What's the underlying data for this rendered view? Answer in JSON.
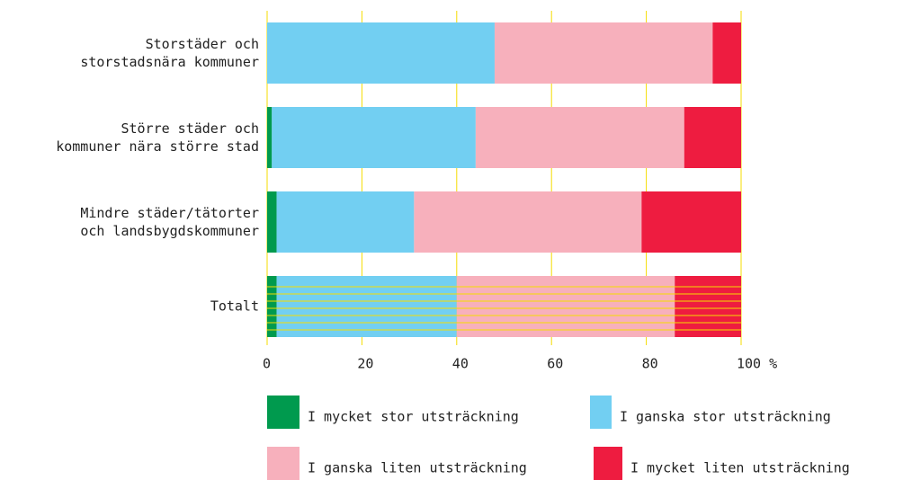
{
  "chart_data": {
    "type": "stacked-barh",
    "categories": [
      "Storstäder och\nstorstadsnära kommuner",
      "Större städer och\nkommuner nära större stad",
      "Mindre städer/tätorter\noch landsbygdskommuner",
      "Totalt"
    ],
    "series": [
      {
        "name": "I mycket stor utsträckning",
        "color": "#009a4e",
        "values": [
          0,
          1,
          2,
          2
        ]
      },
      {
        "name": "I ganska stor utsträckning",
        "color": "#72cff2",
        "values": [
          48,
          43,
          29,
          38
        ]
      },
      {
        "name": "I ganska liten utsträckning",
        "color": "#f7b0bc",
        "values": [
          46,
          44,
          48,
          46
        ]
      },
      {
        "name": "I mycket liten utsträckning",
        "color": "#ee1c40",
        "values": [
          6,
          12,
          21,
          14
        ]
      }
    ],
    "xlim": [
      0,
      100
    ],
    "xticks": [
      0,
      20,
      40,
      60,
      80,
      {
        "value": 100,
        "label": "100 %"
      }
    ],
    "grid": true,
    "grid_color": "#f5dc00"
  }
}
